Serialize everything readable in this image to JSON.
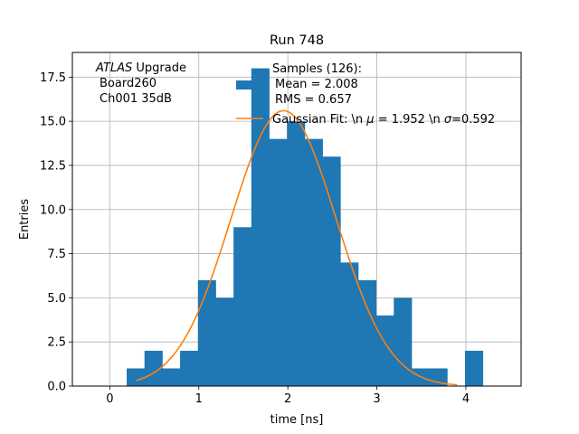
{
  "chart_data": {
    "type": "bar",
    "subtype": "histogram",
    "title": "Run 748",
    "xlabel": "time [ns]",
    "ylabel": "Entries",
    "xlim": [
      -0.42,
      4.62
    ],
    "ylim": [
      0,
      18.9
    ],
    "grid": true,
    "x_ticks": [
      0,
      1,
      2,
      3,
      4
    ],
    "y_ticks": [
      0.0,
      2.5,
      5.0,
      7.5,
      10.0,
      12.5,
      15.0,
      17.5
    ],
    "x_tick_labels": [
      "0",
      "1",
      "2",
      "3",
      "4"
    ],
    "y_tick_labels": [
      "0.0",
      "2.5",
      "5.0",
      "7.5",
      "10.0",
      "12.5",
      "15.0",
      "17.5"
    ],
    "bar_color": "#1f77b4",
    "bins": {
      "edges": [
        0.19,
        0.39,
        0.59,
        0.79,
        0.99,
        1.19,
        1.39,
        1.59,
        1.79,
        1.99,
        2.19,
        2.39,
        2.59,
        2.79,
        2.99,
        3.19,
        3.39,
        3.59,
        3.79,
        3.99
      ],
      "counts": [
        1,
        2,
        1,
        2,
        6,
        5,
        9,
        18,
        14,
        15,
        14,
        13,
        7,
        6,
        4,
        5,
        1,
        1,
        0,
        2
      ]
    },
    "fit": {
      "name": "Gaussian Fit: \\n $\\mu$ = 1.952 \\n $\\sigma$=0.592",
      "color": "#ff7f0e",
      "mu": 1.952,
      "sigma": 0.592,
      "amplitude": 15.6,
      "x_range": [
        0.3,
        3.9
      ]
    },
    "legend": {
      "location": "upper-right",
      "samples_label": "Samples (126):",
      "mean_label": "Mean = 2.008",
      "rms_label": "RMS = 0.657",
      "fit_label_prefix": "Gaussian Fit: \\n ",
      "fit_mu_label": " = 1.952 \\n ",
      "fit_sigma_label": "=0.592",
      "mu_symbol": "μ",
      "sigma_symbol": "σ"
    },
    "annotation": {
      "location": "upper-left",
      "line1_italic": "ATLAS",
      "line1_rest": " Upgrade",
      "line2": "Board260",
      "line3": "Ch001 35dB"
    }
  }
}
